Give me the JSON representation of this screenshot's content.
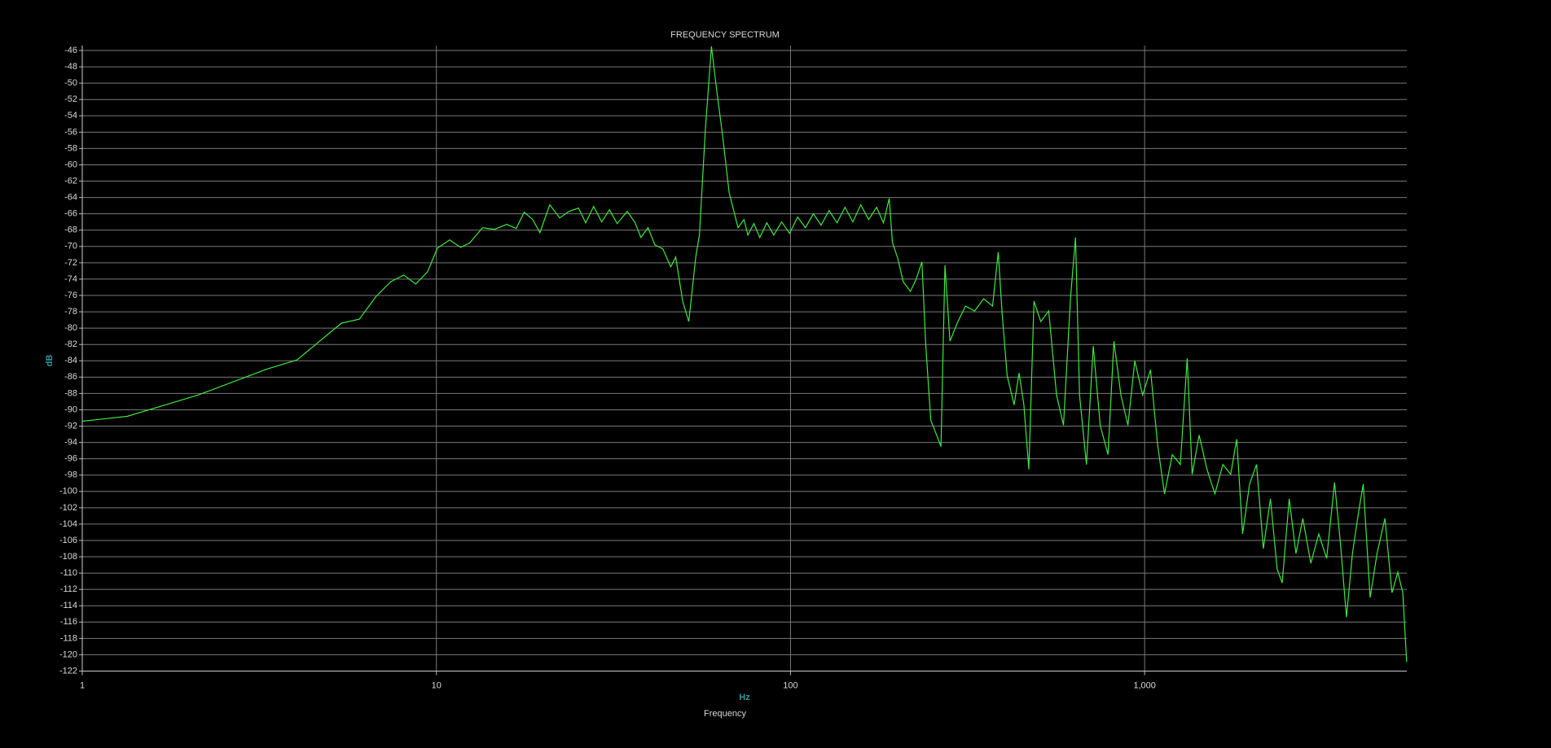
{
  "chart_data": {
    "type": "line",
    "title": "FREQUENCY SPECTRUM",
    "x_label": "Frequency",
    "x_unit": "Hz",
    "y_label": "dB",
    "color": "#3ee83e",
    "xscale": "log",
    "grid": true,
    "xlim": [
      1,
      5500
    ],
    "ylim": [
      -122,
      -45.4
    ],
    "xticks": [
      1,
      10,
      100,
      {
        "value": 1000,
        "label": "1,000"
      }
    ],
    "yticks": [
      -46,
      -48,
      -50,
      -52,
      -54,
      -56,
      -58,
      -60,
      -62,
      -64,
      -66,
      -68,
      -70,
      -72,
      -74,
      -76,
      -78,
      -80,
      -82,
      -84,
      -86,
      -88,
      -90,
      -92,
      -94,
      -96,
      -98,
      -100,
      -102,
      -104,
      -106,
      -108,
      -110,
      -112,
      -114,
      -116,
      -118,
      -120,
      -122
    ],
    "x": [
      1,
      1.34,
      2.12,
      3.33,
      4.04,
      5.39,
      6.06,
      6.76,
      7.44,
      8.09,
      8.74,
      9.44,
      10.07,
      10.9,
      11.7,
      12.4,
      13.5,
      14.6,
      15.8,
      16.8,
      17.7,
      18.7,
      19.6,
      20.9,
      22.3,
      23.7,
      25.2,
      26.4,
      27.8,
      29.3,
      30.8,
      32.4,
      34.6,
      36.4,
      37.8,
      39.6,
      41.4,
      43.6,
      45.9,
      47.4,
      49.6,
      51.6,
      54,
      55.3,
      57.5,
      59.8,
      61.8,
      64.2,
      67.1,
      69.3,
      71.1,
      73.9,
      75.8,
      78.8,
      81.9,
      85.7,
      89.7,
      94.4,
      99.4,
      104.7,
      110.2,
      116,
      122,
      128.5,
      135.3,
      142.5,
      150,
      157.9,
      166.2,
      175,
      183,
      190,
      194,
      201,
      208,
      218,
      226,
      235,
      241,
      249,
      257,
      266,
      273,
      282,
      297,
      312,
      331,
      351,
      372,
      386,
      396,
      409,
      428,
      442,
      456,
      471,
      487,
      509,
      536,
      564,
      590,
      618,
      638,
      655,
      685,
      716,
      749,
      788,
      819,
      857,
      897,
      938,
      987,
      1039,
      1088,
      1138,
      1197,
      1261,
      1319,
      1362,
      1425,
      1500,
      1579,
      1663,
      1750,
      1820,
      1891,
      1978,
      2070,
      2164,
      2266,
      2367,
      2446,
      2560,
      2675,
      2797,
      2946,
      3102,
      3266,
      3438,
      3573,
      3715,
      3862,
      4013,
      4143,
      4333,
      4532,
      4771,
      4994,
      5188,
      5357,
      5495
    ],
    "values": [
      -91.4,
      -90.8,
      -88.2,
      -85,
      -83.9,
      -79.4,
      -78.9,
      -76.1,
      -74.3,
      -73.5,
      -74.6,
      -73.1,
      -70.2,
      -69.2,
      -70.1,
      -69.6,
      -67.7,
      -67.9,
      -67.3,
      -67.8,
      -65.8,
      -66.7,
      -68.3,
      -64.9,
      -66.5,
      -65.7,
      -65.3,
      -67.1,
      -65.1,
      -67,
      -65.5,
      -67.2,
      -65.7,
      -67.1,
      -68.9,
      -67.7,
      -69.8,
      -70.3,
      -72.5,
      -71.3,
      -76.7,
      -79.2,
      -71.3,
      -68.6,
      -55.6,
      -45.5,
      -50.7,
      -56.2,
      -63.4,
      -65.8,
      -67.7,
      -66.7,
      -68.6,
      -67.2,
      -68.9,
      -67.1,
      -68.6,
      -67,
      -68.4,
      -66.4,
      -67.7,
      -66,
      -67.4,
      -65.6,
      -67.1,
      -65.2,
      -67,
      -64.9,
      -66.7,
      -65.2,
      -67.1,
      -64.1,
      -69.5,
      -71.5,
      -74.3,
      -75.5,
      -74.1,
      -71.9,
      -82.2,
      -91.3,
      -92.8,
      -94.5,
      -72.3,
      -81.6,
      -79.2,
      -77.3,
      -77.9,
      -76.4,
      -77.3,
      -70.7,
      -78.3,
      -85.8,
      -89.4,
      -85.5,
      -89.4,
      -97.3,
      -76.7,
      -79.2,
      -77.9,
      -88.2,
      -91.9,
      -76.1,
      -68.9,
      -88.2,
      -96.7,
      -82.2,
      -91.9,
      -95.5,
      -81.6,
      -88.2,
      -91.9,
      -84,
      -88.2,
      -85.1,
      -94.3,
      -100.3,
      -95.5,
      -96.7,
      -83.7,
      -97.9,
      -93.1,
      -97.3,
      -100.3,
      -96.7,
      -97.9,
      -93.6,
      -105.2,
      -99.1,
      -96.7,
      -107,
      -100.9,
      -109.5,
      -111.2,
      -100.9,
      -107.6,
      -103.3,
      -108.8,
      -105.2,
      -108.2,
      -98.9,
      -106.4,
      -115.4,
      -107.6,
      -102.7,
      -99.1,
      -113,
      -107.6,
      -103.3,
      -112.4,
      -109.9,
      -112.4,
      -120.9
    ]
  }
}
